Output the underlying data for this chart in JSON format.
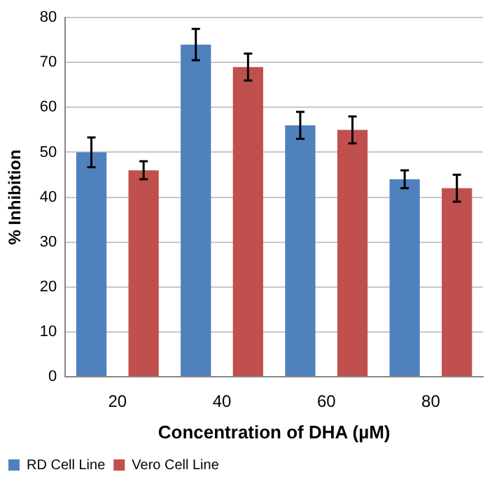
{
  "chart_data": {
    "type": "bar",
    "xlabel": "Concentration of DHA (µM)",
    "ylabel": "% Inhibition",
    "categories": [
      "20",
      "40",
      "60",
      "80"
    ],
    "series": [
      {
        "name": "RD Cell Line",
        "color": "#4f81bd",
        "values": [
          50,
          74,
          56,
          44
        ],
        "errors": [
          3.3,
          3.5,
          3,
          2
        ]
      },
      {
        "name": "Vero Cell Line",
        "color": "#c0504d",
        "values": [
          46,
          69,
          55,
          42
        ],
        "errors": [
          2,
          3,
          3,
          3
        ]
      }
    ],
    "ylim": [
      0,
      80
    ],
    "yticks": [
      0,
      10,
      20,
      30,
      40,
      50,
      60,
      70,
      80
    ],
    "grid": "y",
    "legend": "bottom left"
  }
}
